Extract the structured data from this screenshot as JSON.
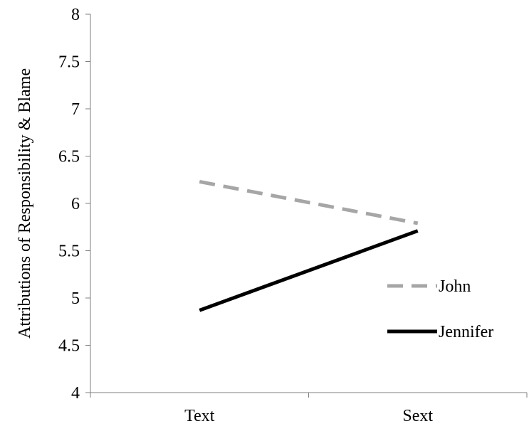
{
  "chart_data": {
    "type": "line",
    "title": "",
    "xlabel": "",
    "ylabel": "Attributions of Responsibility & Blame",
    "categories": [
      "Text",
      "Sext"
    ],
    "ylim": [
      4,
      8
    ],
    "yticks": [
      "4",
      "4.5",
      "5",
      "5.5",
      "6",
      "6.5",
      "7",
      "7.5",
      "8"
    ],
    "series": [
      {
        "name": "John",
        "values": [
          6.23,
          5.79
        ],
        "color": "#a6a6a6",
        "style": "dashed"
      },
      {
        "name": "Jennifer",
        "values": [
          4.87,
          5.71
        ],
        "color": "#000000",
        "style": "solid"
      }
    ],
    "grid": false,
    "legend": "right"
  }
}
